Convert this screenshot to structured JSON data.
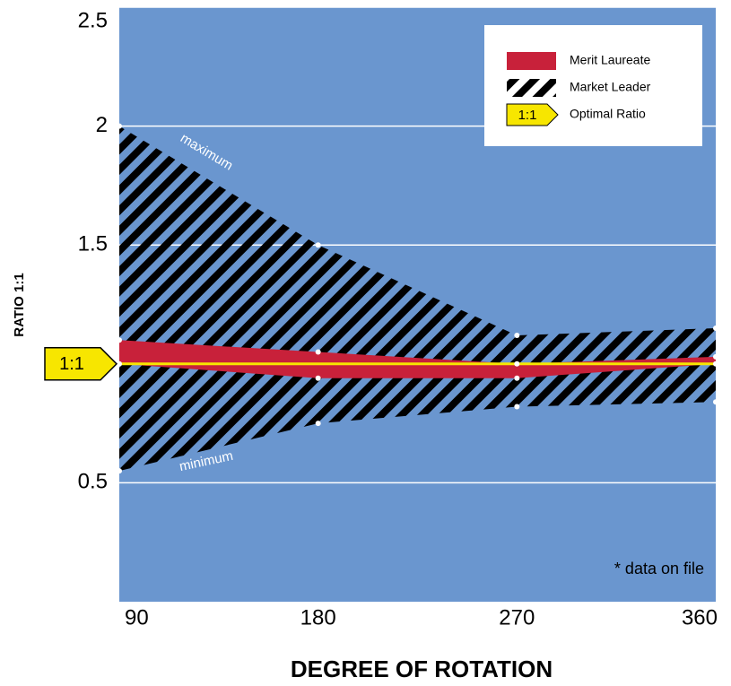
{
  "chart_data": {
    "type": "band",
    "y_label": "RATIO 1:1",
    "x_label": "DEGREE OF ROTATION",
    "x": [
      90,
      180,
      270,
      360
    ],
    "xlim": [
      90,
      360
    ],
    "xticks": [
      90,
      180,
      270,
      360
    ],
    "ylim": [
      0,
      2.5
    ],
    "yticks": [
      0.5,
      1.5,
      2,
      2.5
    ],
    "grid": true,
    "plot_color": "#6a96cf",
    "ratio_marker": {
      "label": "1:1",
      "value": 1
    },
    "series": [
      {
        "name": "Market Leader",
        "color": "#000000",
        "pattern": "hatch",
        "upper": [
          2.0,
          1.5,
          1.12,
          1.15
        ],
        "lower": [
          0.55,
          0.75,
          0.82,
          0.84
        ]
      },
      {
        "name": "Merit Laureate",
        "color": "#c8213a",
        "upper": [
          1.1,
          1.05,
          1.0,
          1.03
        ],
        "lower": [
          1.0,
          0.94,
          0.94,
          1.0
        ]
      },
      {
        "name": "Optimal Ratio",
        "color": "#f7e600",
        "values": [
          1,
          1,
          1,
          1
        ]
      }
    ],
    "annotations": [
      "maximum",
      "minimum",
      "* data on file"
    ]
  }
}
